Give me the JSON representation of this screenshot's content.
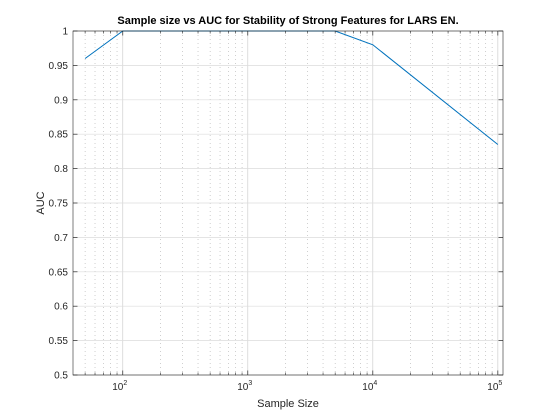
{
  "chart_data": {
    "type": "line",
    "title": "Sample size vs AUC for Stability of Strong Features for LARS EN.",
    "xlabel": "Sample Size",
    "ylabel": "AUC",
    "xscale": "log",
    "xlim": [
      40,
      110000
    ],
    "ylim": [
      0.5,
      1.0
    ],
    "x_ticks": [
      {
        "base": "10",
        "exp": "2",
        "value": 100
      },
      {
        "base": "10",
        "exp": "3",
        "value": 1000
      },
      {
        "base": "10",
        "exp": "4",
        "value": 10000
      },
      {
        "base": "10",
        "exp": "5",
        "value": 100000
      }
    ],
    "y_ticks": [
      {
        "label": "0.5",
        "value": 0.5
      },
      {
        "label": "0.55",
        "value": 0.55
      },
      {
        "label": "0.6",
        "value": 0.6
      },
      {
        "label": "0.65",
        "value": 0.65
      },
      {
        "label": "0.7",
        "value": 0.7
      },
      {
        "label": "0.75",
        "value": 0.75
      },
      {
        "label": "0.8",
        "value": 0.8
      },
      {
        "label": "0.85",
        "value": 0.85
      },
      {
        "label": "0.9",
        "value": 0.9
      },
      {
        "label": "0.95",
        "value": 0.95
      },
      {
        "label": "1",
        "value": 1.0
      }
    ],
    "grid": true,
    "minor_grid": true,
    "series": [
      {
        "color": "#0072BD",
        "x": [
          50,
          100,
          500,
          1000,
          5000,
          10000,
          100000
        ],
        "y": [
          0.96,
          1.0,
          1.0,
          1.0,
          1.0,
          0.98,
          0.835
        ]
      }
    ]
  }
}
